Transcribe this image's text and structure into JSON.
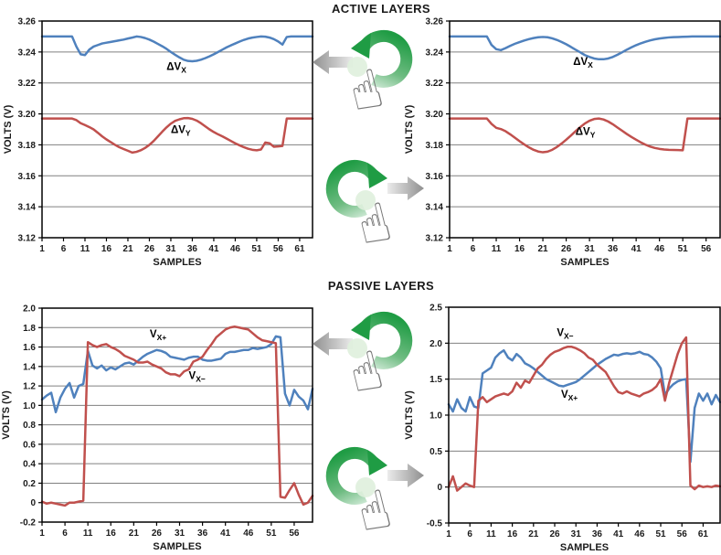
{
  "sections": [
    {
      "title": "ACTIVE LAYERS"
    },
    {
      "title": "PASSIVE LAYERS"
    }
  ],
  "colors": {
    "series_blue": "#4f81bd",
    "series_red": "#c0504d",
    "grid": "#808080",
    "axis": "#000000",
    "green_dark": "#1f9c44",
    "green_mid": "#6fbc82",
    "green_light": "#d8eede",
    "gray_arrow_dark": "#8f8f8f",
    "gray_arrow_light": "#ebebeb",
    "touch_glow": "#dff0dd",
    "hand_outline": "#777777"
  },
  "gestures": [
    {
      "name": "rotate-counterclockwise",
      "arrow": "left",
      "section": "ACTIVE LAYERS"
    },
    {
      "name": "rotate-clockwise",
      "arrow": "right",
      "section": "ACTIVE LAYERS"
    },
    {
      "name": "rotate-counterclockwise",
      "arrow": "left",
      "section": "PASSIVE LAYERS"
    },
    {
      "name": "rotate-clockwise",
      "arrow": "right",
      "section": "PASSIVE LAYERS"
    }
  ],
  "chart_data": [
    {
      "type": "line",
      "section": "ACTIVE LAYERS",
      "position": "left",
      "xlabel": "SAMPLES",
      "ylabel": "VOLTS (V)",
      "xlim": [
        1,
        64
      ],
      "ylim": [
        3.12,
        3.26
      ],
      "xticks": [
        1,
        6,
        11,
        16,
        21,
        26,
        31,
        36,
        41,
        46,
        51,
        56,
        61
      ],
      "yticks": [
        3.26,
        3.24,
        3.22,
        3.2,
        3.18,
        3.16,
        3.14,
        3.12
      ],
      "ytick_labels": [
        "3.26",
        "3.24",
        "3.22",
        "3.20",
        "3.18",
        "3.16",
        "3.14",
        "3.12"
      ],
      "grid": "horizontal",
      "series": [
        {
          "name": "ΔVX",
          "color": "blue",
          "label": {
            "text": "ΔV",
            "sub": "X",
            "x": 30,
            "y": 3.2285
          },
          "values": [
            3.25,
            3.25,
            3.25,
            3.25,
            3.25,
            3.25,
            3.25,
            3.25,
            3.2435,
            3.2385,
            3.238,
            3.2415,
            3.2435,
            3.2445,
            3.2455,
            3.246,
            3.2465,
            3.247,
            3.2475,
            3.248,
            3.2487,
            3.2493,
            3.25,
            3.2497,
            3.249,
            3.248,
            3.2467,
            3.2452,
            3.2437,
            3.242,
            3.24,
            3.2382,
            3.2365,
            3.235,
            3.2342,
            3.234,
            3.2343,
            3.235,
            3.236,
            3.2372,
            3.2385,
            3.24,
            3.2415,
            3.243,
            3.2443,
            3.2455,
            3.2467,
            3.2478,
            3.2487,
            3.2493,
            3.2497,
            3.25,
            3.2499,
            3.2493,
            3.2483,
            3.2468,
            3.2448,
            3.2497,
            3.25,
            3.25,
            3.25,
            3.25,
            3.25,
            3.25
          ]
        },
        {
          "name": "ΔVY",
          "color": "red",
          "label": {
            "text": "ΔV",
            "sub": "Y",
            "x": 31,
            "y": 3.1875
          },
          "values": [
            3.197,
            3.197,
            3.197,
            3.197,
            3.197,
            3.197,
            3.197,
            3.197,
            3.196,
            3.194,
            3.1928,
            3.1915,
            3.19,
            3.1878,
            3.1855,
            3.1835,
            3.1818,
            3.18,
            3.1785,
            3.1773,
            3.1762,
            3.175,
            3.1755,
            3.1765,
            3.178,
            3.18,
            3.1825,
            3.1855,
            3.1885,
            3.1913,
            3.1937,
            3.1955,
            3.1965,
            3.1972,
            3.1973,
            3.1968,
            3.1957,
            3.194,
            3.192,
            3.19,
            3.1883,
            3.1868,
            3.1855,
            3.184,
            3.1825,
            3.181,
            3.1797,
            3.1785,
            3.1775,
            3.1768,
            3.1765,
            3.177,
            3.1815,
            3.181,
            3.1788,
            3.179,
            3.1793,
            3.197,
            3.197,
            3.197,
            3.197,
            3.197,
            3.197,
            3.197
          ]
        }
      ]
    },
    {
      "type": "line",
      "section": "ACTIVE LAYERS",
      "position": "right",
      "xlabel": "SAMPLES",
      "ylabel": "VOLTS (V)",
      "xlim": [
        1,
        59
      ],
      "ylim": [
        3.12,
        3.26
      ],
      "xticks": [
        1,
        6,
        11,
        16,
        21,
        26,
        31,
        36,
        41,
        46,
        51,
        56
      ],
      "yticks": [
        3.26,
        3.24,
        3.22,
        3.2,
        3.18,
        3.16,
        3.14,
        3.12
      ],
      "ytick_labels": [
        "3.26",
        "3.24",
        "3.22",
        "3.20",
        "3.18",
        "3.16",
        "3.14",
        "3.12"
      ],
      "grid": "horizontal",
      "series": [
        {
          "name": "ΔVX",
          "color": "blue",
          "label": {
            "text": "ΔV",
            "sub": "X",
            "x": 27.5,
            "y": 3.2315
          },
          "values": [
            3.25,
            3.25,
            3.25,
            3.25,
            3.25,
            3.25,
            3.25,
            3.25,
            3.25,
            3.2445,
            3.2418,
            3.2412,
            3.2425,
            3.244,
            3.2453,
            3.2464,
            3.2474,
            3.2483,
            3.249,
            3.2495,
            3.2497,
            3.2495,
            3.2488,
            3.2478,
            3.2465,
            3.245,
            3.2433,
            3.2415,
            3.2398,
            3.238,
            3.2368,
            3.2358,
            3.2353,
            3.2353,
            3.2358,
            3.2368,
            3.2382,
            3.2398,
            3.2415,
            3.243,
            3.2444,
            3.2456,
            3.2466,
            3.2475,
            3.2482,
            3.2487,
            3.2491,
            3.2494,
            3.2496,
            3.2497,
            3.2498,
            3.2499,
            3.25,
            3.25,
            3.25,
            3.25,
            3.25,
            3.25,
            3.25
          ]
        },
        {
          "name": "ΔVY",
          "color": "red",
          "label": {
            "text": "ΔV",
            "sub": "Y",
            "x": 28,
            "y": 3.1865
          },
          "values": [
            3.197,
            3.197,
            3.197,
            3.197,
            3.197,
            3.197,
            3.197,
            3.197,
            3.197,
            3.1935,
            3.191,
            3.1902,
            3.1888,
            3.1868,
            3.1846,
            3.1824,
            3.1803,
            3.1784,
            3.1768,
            3.1757,
            3.1752,
            3.1756,
            3.1768,
            3.1786,
            3.1808,
            3.1833,
            3.186,
            3.1888,
            3.1914,
            3.1938,
            3.1956,
            3.1967,
            3.197,
            3.1964,
            3.1951,
            3.1933,
            3.1912,
            3.1891,
            3.187,
            3.1851,
            3.1833,
            3.1816,
            3.1801,
            3.1789,
            3.178,
            3.1774,
            3.177,
            3.1768,
            3.1767,
            3.1766,
            3.1765,
            3.197,
            3.197,
            3.197,
            3.197,
            3.197,
            3.197,
            3.197,
            3.197
          ]
        }
      ]
    },
    {
      "type": "line",
      "section": "PASSIVE LAYERS",
      "position": "left",
      "xlabel": "SAMPLES",
      "ylabel": "VOLTS (V)",
      "xlim": [
        1,
        60
      ],
      "ylim": [
        -0.2,
        2.0
      ],
      "xticks": [
        1,
        6,
        11,
        16,
        21,
        26,
        31,
        36,
        41,
        46,
        51,
        56
      ],
      "yticks": [
        2.0,
        1.8,
        1.6,
        1.4,
        1.2,
        1.0,
        0.8,
        0.6,
        0.4,
        0.2,
        0,
        -0.2
      ],
      "ytick_labels": [
        "2.0",
        "1.8",
        "1.6",
        "1.4",
        "1.2",
        "1.0",
        "0.8",
        "0.6",
        "0.4",
        "0.2",
        "0",
        "-0.2"
      ],
      "grid": "horizontal",
      "series": [
        {
          "name": "VX+",
          "color": "blue",
          "label": {
            "text": "V",
            "sub": "X+",
            "x": 24.5,
            "y": 1.7
          },
          "values": [
            1.06,
            1.1,
            1.13,
            0.93,
            1.08,
            1.17,
            1.23,
            1.08,
            1.2,
            1.22,
            1.56,
            1.41,
            1.38,
            1.41,
            1.36,
            1.39,
            1.37,
            1.4,
            1.43,
            1.44,
            1.42,
            1.46,
            1.5,
            1.53,
            1.55,
            1.57,
            1.56,
            1.54,
            1.5,
            1.49,
            1.48,
            1.47,
            1.49,
            1.5,
            1.5,
            1.47,
            1.46,
            1.46,
            1.47,
            1.48,
            1.53,
            1.55,
            1.55,
            1.56,
            1.57,
            1.57,
            1.59,
            1.58,
            1.59,
            1.6,
            1.63,
            1.71,
            1.7,
            1.12,
            1.0,
            1.16,
            1.09,
            1.05,
            0.96,
            1.17
          ]
        },
        {
          "name": "VX−",
          "color": "red",
          "label": {
            "text": "V",
            "sub": "X−",
            "x": 33,
            "y": 1.27
          },
          "values": [
            0.01,
            -0.01,
            0.0,
            -0.01,
            -0.02,
            -0.03,
            0.0,
            0.0,
            0.01,
            0.02,
            1.65,
            1.62,
            1.6,
            1.62,
            1.63,
            1.6,
            1.58,
            1.55,
            1.51,
            1.49,
            1.47,
            1.44,
            1.44,
            1.45,
            1.42,
            1.4,
            1.38,
            1.34,
            1.32,
            1.32,
            1.3,
            1.35,
            1.37,
            1.45,
            1.47,
            1.5,
            1.57,
            1.63,
            1.7,
            1.74,
            1.78,
            1.8,
            1.81,
            1.8,
            1.79,
            1.78,
            1.74,
            1.7,
            1.67,
            1.66,
            1.65,
            1.64,
            0.06,
            0.05,
            0.13,
            0.2,
            0.08,
            -0.02,
            0.0,
            0.07
          ]
        }
      ]
    },
    {
      "type": "line",
      "section": "PASSIVE LAYERS",
      "position": "right",
      "xlabel": "SAMPLES",
      "ylabel": "VOLTS (V)",
      "xlim": [
        1,
        65
      ],
      "ylim": [
        -0.5,
        2.5
      ],
      "xticks": [
        1,
        6,
        11,
        16,
        21,
        26,
        31,
        36,
        41,
        46,
        51,
        56,
        61
      ],
      "yticks": [
        2.5,
        2.0,
        1.5,
        1.0,
        0.5,
        0,
        -0.5
      ],
      "ytick_labels": [
        "2.5",
        "2.0",
        "1.5",
        "1.0",
        "0.5",
        "0",
        "-0.5"
      ],
      "grid": "horizontal",
      "series": [
        {
          "name": "VX+",
          "color": "blue",
          "label": {
            "text": "V",
            "sub": "X+",
            "x": 27.5,
            "y": 1.24
          },
          "values": [
            1.15,
            1.05,
            1.22,
            1.1,
            1.05,
            1.25,
            1.12,
            1.1,
            1.58,
            1.62,
            1.66,
            1.8,
            1.86,
            1.9,
            1.8,
            1.76,
            1.85,
            1.8,
            1.72,
            1.69,
            1.65,
            1.6,
            1.55,
            1.5,
            1.47,
            1.44,
            1.41,
            1.4,
            1.42,
            1.44,
            1.46,
            1.5,
            1.55,
            1.6,
            1.65,
            1.7,
            1.74,
            1.78,
            1.81,
            1.84,
            1.83,
            1.85,
            1.86,
            1.85,
            1.86,
            1.88,
            1.85,
            1.84,
            1.8,
            1.74,
            1.65,
            1.28,
            1.37,
            1.43,
            1.47,
            1.49,
            1.5,
            0.35,
            1.1,
            1.3,
            1.2,
            1.3,
            1.15,
            1.28,
            1.18
          ]
        },
        {
          "name": "VX−",
          "color": "red",
          "label": {
            "text": "V",
            "sub": "X−",
            "x": 26.5,
            "y": 2.1
          },
          "values": [
            0.0,
            0.15,
            -0.05,
            0.0,
            0.05,
            0.02,
            0.0,
            1.2,
            1.25,
            1.18,
            1.22,
            1.26,
            1.28,
            1.3,
            1.28,
            1.33,
            1.45,
            1.38,
            1.48,
            1.45,
            1.55,
            1.65,
            1.7,
            1.78,
            1.84,
            1.88,
            1.9,
            1.93,
            1.95,
            1.95,
            1.93,
            1.9,
            1.86,
            1.8,
            1.77,
            1.7,
            1.65,
            1.6,
            1.5,
            1.4,
            1.32,
            1.3,
            1.33,
            1.3,
            1.28,
            1.26,
            1.3,
            1.32,
            1.35,
            1.4,
            1.5,
            1.2,
            1.45,
            1.65,
            1.85,
            2.0,
            2.08,
            0.02,
            -0.03,
            0.02,
            0.0,
            0.01,
            0.0,
            0.02,
            0.01
          ]
        }
      ]
    }
  ]
}
